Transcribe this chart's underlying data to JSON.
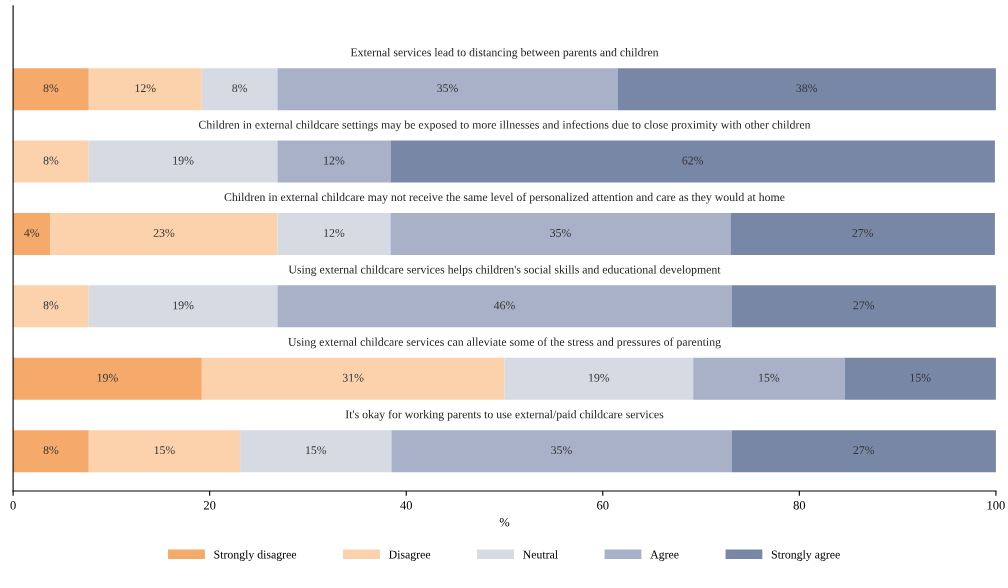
{
  "chart_data": {
    "type": "bar",
    "orientation": "horizontal",
    "stacked": true,
    "xlabel": "%",
    "categories": [
      "External services lead to distancing between parents and children",
      "Children in external childcare settings may be exposed to more illnesses and infections due to close proximity with other children",
      "Children in external childcare may not receive the same level of personalized attention and care as they would at home",
      "Using external childcare services helps children's social skills and educational development",
      "Using external childcare services can alleviate some of the stress and pressures of parenting",
      "It's okay for working parents to use external/paid childcare services"
    ],
    "series": [
      {
        "name": "Strongly disagree",
        "color": "#f5a96b",
        "values": [
          7.7,
          null,
          3.8,
          null,
          19.2,
          7.7
        ],
        "value_labels": [
          "8%",
          null,
          "4%",
          null,
          "19%",
          "8%"
        ]
      },
      {
        "name": "Disagree",
        "color": "#fbd2ab",
        "values": [
          11.5,
          7.7,
          23.1,
          7.7,
          30.8,
          15.4
        ],
        "value_labels": [
          "12%",
          "8%",
          "23%",
          "8%",
          "31%",
          "15%"
        ]
      },
      {
        "name": "Neutral",
        "color": "#d6dae3",
        "values": [
          7.7,
          19.2,
          11.5,
          19.2,
          19.2,
          15.4
        ],
        "value_labels": [
          "8%",
          "19%",
          "12%",
          "19%",
          "19%",
          "15%"
        ]
      },
      {
        "name": "Agree",
        "color": "#a8b1c7",
        "values": [
          34.6,
          11.5,
          34.6,
          46.2,
          15.4,
          34.6
        ],
        "value_labels": [
          "35%",
          "12%",
          "35%",
          "46%",
          "15%",
          "35%"
        ]
      },
      {
        "name": "Strongly agree",
        "color": "#7987a6",
        "values": [
          38.5,
          61.5,
          26.9,
          26.9,
          15.4,
          26.9
        ],
        "value_labels": [
          "38%",
          "62%",
          "27%",
          "27%",
          "15%",
          "27%"
        ]
      }
    ],
    "xlim": [
      0,
      100
    ],
    "xticks": [
      0,
      20,
      40,
      60,
      80,
      100
    ],
    "grid": false,
    "legend": "bottom"
  }
}
